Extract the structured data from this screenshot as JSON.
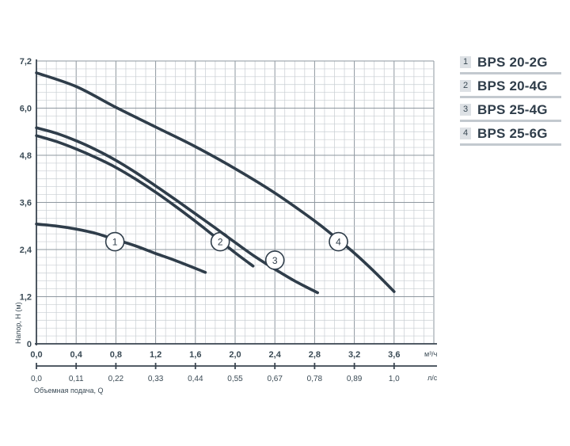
{
  "chart_data": {
    "type": "line",
    "title": "",
    "ylabel": "Напор, Н (м)",
    "xlabel": "Объемная подача, Q",
    "x_unit_primary": "м³/ч",
    "x_unit_secondary": "л/с",
    "xlim": [
      0,
      4.0
    ],
    "ylim": [
      0,
      7.2
    ],
    "x_ticks": [
      0.0,
      0.4,
      0.8,
      1.2,
      1.6,
      2.0,
      2.4,
      2.8,
      3.2,
      3.6
    ],
    "x_tick_labels": [
      "0,0",
      "0,4",
      "0,8",
      "1,2",
      "1,6",
      "2,0",
      "2,4",
      "2,8",
      "3,2",
      "3,6"
    ],
    "x_tick_labels_secondary": [
      "0,0",
      "0,11",
      "0,22",
      "0,33",
      "0,44",
      "0,55",
      "0,67",
      "0,78",
      "0,89",
      "1,0"
    ],
    "y_ticks": [
      0,
      1.2,
      2.4,
      3.6,
      4.8,
      6.0,
      7.2
    ],
    "y_tick_labels": [
      "0",
      "1,2",
      "2,4",
      "3,6",
      "4,8",
      "6,0",
      "7,2"
    ],
    "grid": true,
    "legend_position": "right",
    "series": [
      {
        "name": "BPS 20-2G",
        "marker_label": "1",
        "label_at": {
          "x": 0.79,
          "y": 2.6
        },
        "x": [
          0.0,
          0.2,
          0.4,
          0.6,
          0.8,
          1.0,
          1.2,
          1.4,
          1.7
        ],
        "y": [
          3.05,
          3.0,
          2.92,
          2.81,
          2.65,
          2.49,
          2.3,
          2.12,
          1.82
        ]
      },
      {
        "name": "BPS 20-4G",
        "marker_label": "2",
        "label_at": {
          "x": 1.85,
          "y": 2.6
        },
        "x": [
          0.0,
          0.2,
          0.4,
          0.6,
          0.8,
          1.0,
          1.2,
          1.4,
          1.6,
          1.8,
          2.0,
          2.18
        ],
        "y": [
          5.3,
          5.15,
          4.96,
          4.74,
          4.49,
          4.19,
          3.86,
          3.5,
          3.12,
          2.72,
          2.32,
          1.98
        ]
      },
      {
        "name": "BPS 25-4G",
        "marker_label": "3",
        "label_at": {
          "x": 2.4,
          "y": 2.13
        },
        "x": [
          0.0,
          0.2,
          0.4,
          0.6,
          0.8,
          1.0,
          1.2,
          1.4,
          1.6,
          1.8,
          2.0,
          2.2,
          2.4,
          2.6,
          2.83
        ],
        "y": [
          5.5,
          5.36,
          5.17,
          4.94,
          4.67,
          4.36,
          4.02,
          3.67,
          3.31,
          2.95,
          2.58,
          2.22,
          1.9,
          1.6,
          1.3
        ]
      },
      {
        "name": "BPS 25-6G",
        "marker_label": "4",
        "label_at": {
          "x": 3.04,
          "y": 2.6
        },
        "x": [
          0.0,
          0.4,
          0.8,
          1.2,
          1.6,
          2.0,
          2.4,
          2.8,
          3.0,
          3.2,
          3.4,
          3.6
        ],
        "y": [
          6.9,
          6.55,
          6.02,
          5.52,
          5.02,
          4.46,
          3.84,
          3.13,
          2.73,
          2.31,
          1.84,
          1.33
        ]
      }
    ]
  },
  "legend": {
    "items": [
      {
        "num": "1",
        "name": "BPS 20-2G"
      },
      {
        "num": "2",
        "name": "BPS 20-4G"
      },
      {
        "num": "3",
        "name": "BPS 25-4G"
      },
      {
        "num": "4",
        "name": "BPS 25-6G"
      }
    ]
  },
  "colors": {
    "curve": "#2f3d4a",
    "grid_minor": "#c8cdd2",
    "grid_major": "#8e979f",
    "text": "#3a4a55"
  }
}
